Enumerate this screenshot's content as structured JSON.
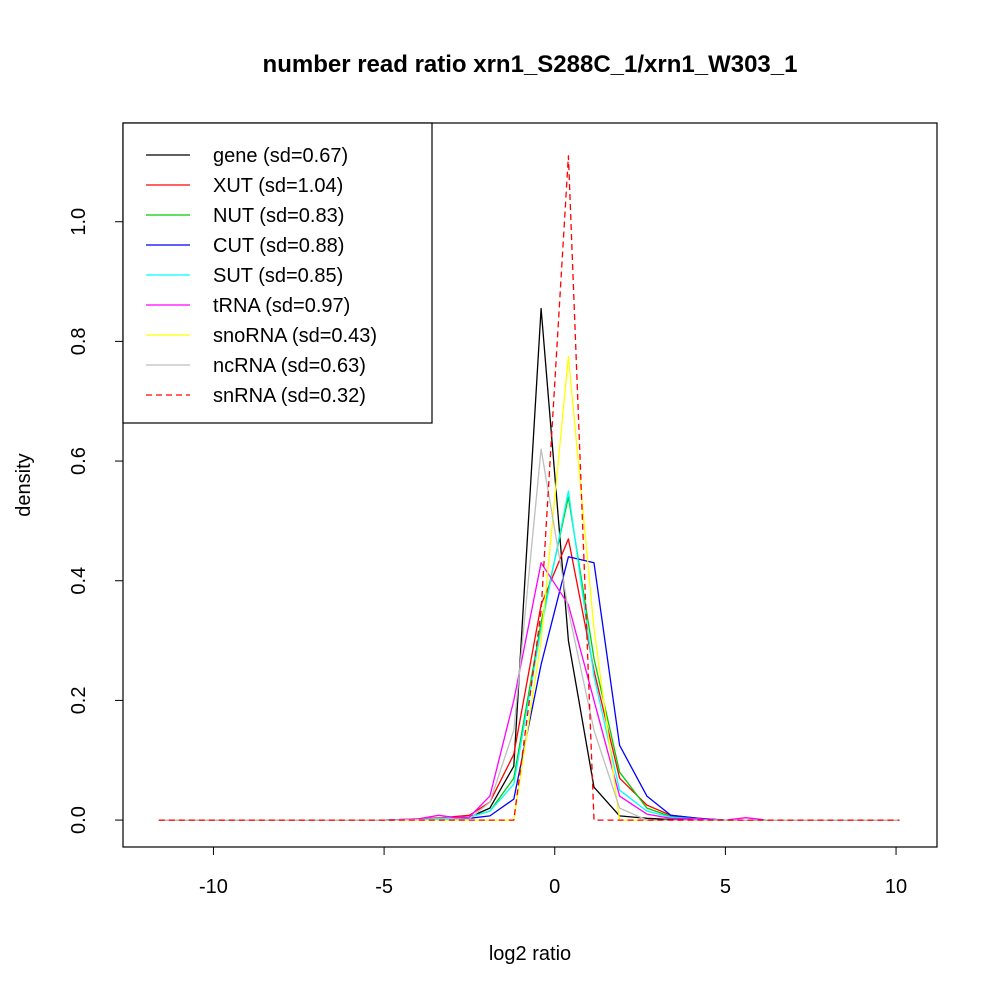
{
  "chart_data": {
    "type": "line",
    "title": "number read ratio xrn1_S288C_1/xrn1_W303_1",
    "xlabel": "log2 ratio",
    "ylabel": "density",
    "xlim": [
      -12.65,
      11.2
    ],
    "ylim": [
      -0.045,
      1.165
    ],
    "xticks": [
      -10,
      -5,
      0,
      5,
      10
    ],
    "xtick_labels": [
      "-10",
      "-5",
      "0",
      "5",
      "10"
    ],
    "yticks": [
      0.0,
      0.2,
      0.4,
      0.6,
      0.8,
      1.0
    ],
    "ytick_labels": [
      "0.0",
      "0.2",
      "0.4",
      "0.6",
      "0.8",
      "1.0"
    ],
    "grid": false,
    "legend_position": "top-left",
    "series": [
      {
        "name": "gene (sd=0.67)",
        "color": "#000000",
        "dash": "solid",
        "x": [
          -11.6,
          -5.0,
          -4.0,
          -3.3,
          -2.5,
          -1.9,
          -1.2,
          -0.4,
          0.4,
          1.15,
          1.9,
          2.7,
          3.4,
          5.0,
          10.1
        ],
        "y": [
          0.0,
          0.0,
          0.001,
          0.003,
          0.005,
          0.02,
          0.09,
          0.855,
          0.3,
          0.055,
          0.007,
          0.003,
          0.001,
          0.0,
          0.0
        ]
      },
      {
        "name": "XUT (sd=1.04)",
        "color": "#ff0000",
        "dash": "solid",
        "x": [
          -11.6,
          -5.0,
          -4.0,
          -3.3,
          -2.5,
          -1.9,
          -1.2,
          -0.4,
          0.4,
          1.15,
          1.9,
          2.7,
          3.4,
          4.2,
          5.0,
          10.1
        ],
        "y": [
          0.0,
          0.0,
          0.002,
          0.004,
          0.008,
          0.03,
          0.11,
          0.36,
          0.47,
          0.25,
          0.07,
          0.025,
          0.008,
          0.003,
          0.0,
          0.0
        ]
      },
      {
        "name": "NUT (sd=0.83)",
        "color": "#00cd00",
        "dash": "solid",
        "x": [
          -11.6,
          -5.0,
          -4.0,
          -3.3,
          -2.5,
          -1.9,
          -1.2,
          -0.4,
          0.4,
          1.15,
          1.9,
          2.7,
          3.4,
          4.2,
          5.0,
          10.1
        ],
        "y": [
          0.0,
          0.0,
          0.001,
          0.003,
          0.005,
          0.015,
          0.07,
          0.33,
          0.54,
          0.27,
          0.08,
          0.02,
          0.006,
          0.002,
          0.0,
          0.0
        ]
      },
      {
        "name": "CUT (sd=0.88)",
        "color": "#0000ff",
        "dash": "solid",
        "x": [
          -11.6,
          -5.0,
          -4.0,
          -3.3,
          -2.5,
          -1.9,
          -1.2,
          -0.4,
          0.4,
          1.15,
          1.9,
          2.7,
          3.4,
          4.2,
          5.0,
          10.1
        ],
        "y": [
          0.0,
          0.0,
          0.001,
          0.002,
          0.003,
          0.007,
          0.035,
          0.26,
          0.44,
          0.43,
          0.125,
          0.04,
          0.008,
          0.003,
          0.0,
          0.0
        ]
      },
      {
        "name": "SUT (sd=0.85)",
        "color": "#00ffff",
        "dash": "solid",
        "x": [
          -11.6,
          -5.0,
          -4.0,
          -3.3,
          -2.5,
          -1.9,
          -1.2,
          -0.4,
          0.4,
          1.15,
          1.9,
          2.7,
          3.4,
          4.2,
          5.0,
          10.1
        ],
        "y": [
          0.0,
          0.0,
          0.001,
          0.003,
          0.005,
          0.015,
          0.06,
          0.32,
          0.55,
          0.24,
          0.05,
          0.015,
          0.005,
          0.002,
          0.0,
          0.0
        ]
      },
      {
        "name": "tRNA (sd=0.97)",
        "color": "#ff00ff",
        "dash": "solid",
        "x": [
          -11.6,
          -5.0,
          -4.0,
          -3.4,
          -2.9,
          -2.5,
          -1.9,
          -1.2,
          -0.4,
          0.4,
          1.15,
          1.9,
          2.7,
          3.4,
          4.2,
          5.0,
          5.6,
          6.2,
          10.1
        ],
        "y": [
          0.0,
          0.0,
          0.002,
          0.008,
          0.004,
          0.005,
          0.04,
          0.2,
          0.43,
          0.36,
          0.2,
          0.04,
          0.01,
          0.003,
          0.002,
          0.0,
          0.004,
          0.0,
          0.0
        ]
      },
      {
        "name": "snoRNA (sd=0.43)",
        "color": "#ffff00",
        "dash": "solid",
        "x": [
          -11.6,
          -1.2,
          -0.4,
          0.4,
          1.15,
          1.9,
          10.1
        ],
        "y": [
          0.0,
          0.0,
          0.3,
          0.775,
          0.32,
          0.0,
          0.0
        ]
      },
      {
        "name": "ncRNA (sd=0.63)",
        "color": "#bebebe",
        "dash": "solid",
        "x": [
          -11.6,
          -5.0,
          -2.5,
          -1.9,
          -1.2,
          -0.4,
          0.4,
          1.15,
          1.9,
          2.7,
          10.1
        ],
        "y": [
          0.0,
          0.0,
          0.002,
          0.03,
          0.15,
          0.62,
          0.35,
          0.15,
          0.02,
          0.0,
          0.0
        ]
      },
      {
        "name": "snRNA (sd=0.32)",
        "color": "#ff0000",
        "dash": "dashed",
        "x": [
          -11.6,
          -1.2,
          -0.4,
          0.4,
          1.15,
          10.1
        ],
        "y": [
          0.0,
          0.0,
          0.35,
          1.11,
          0.0,
          0.0
        ]
      }
    ]
  }
}
